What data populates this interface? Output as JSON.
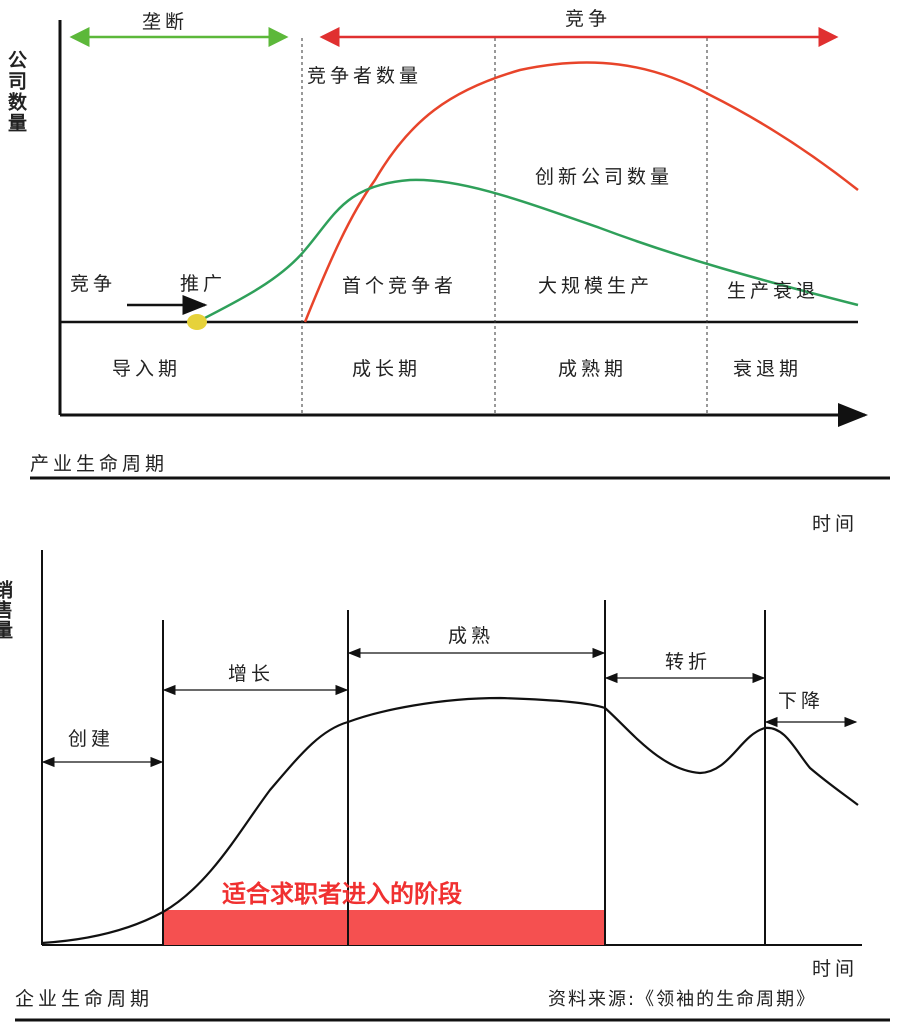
{
  "industry": {
    "y_axis_label": "公司数量",
    "monopoly": "垄断",
    "competition": "竞争",
    "competitors_count": "竞争者数量",
    "innovators_count": "创新公司数量",
    "competition_left": "竞争",
    "promotion": "推广",
    "first_competitor": "首个竞争者",
    "mass_production": "大规模生产",
    "production_decline": "生产衰退",
    "stages": [
      "导入期",
      "成长期",
      "成熟期",
      "衰退期"
    ],
    "title": "产业生命周期",
    "x_axis_label": "时间",
    "colors": {
      "monopoly": "#5cb83a",
      "competition": "#e03030",
      "competitors_curve": "#e8442a",
      "innovators_curve": "#2fa05a",
      "dot": "#e6d23a"
    }
  },
  "enterprise": {
    "y_axis_label": "销售量",
    "phases": [
      "创建",
      "增长",
      "成熟",
      "转折",
      "下降"
    ],
    "highlight_text": "适合求职者进入的阶段",
    "x_axis_label": "时间",
    "title": "企业生命周期",
    "source": "资料来源:《领袖的生命周期》",
    "colors": {
      "highlight": "#f55050",
      "highlight_text": "#f03030"
    }
  }
}
